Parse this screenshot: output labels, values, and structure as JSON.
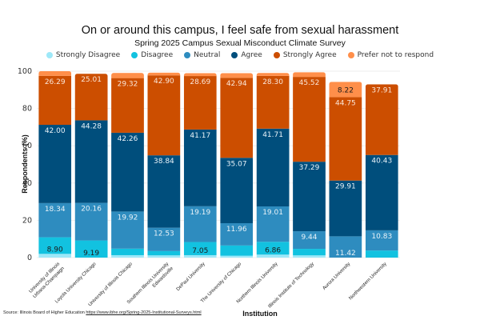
{
  "chart_data": {
    "type": "bar",
    "stacked": true,
    "title": "On or around this campus, I feel safe from sexual harassment",
    "subtitle": "Spring 2025 Campus Sexual Misconduct Climate Survey",
    "xlabel": "Institution",
    "ylabel": "Respondents (%)",
    "ylim": [
      0,
      100
    ],
    "yticks": [
      0,
      20,
      40,
      60,
      80,
      100
    ],
    "grid": true,
    "legend_position": "top",
    "categories": [
      "University of Illinois Urbana-Champaign",
      "Loyola University Chicago",
      "University of Illinois Chicago",
      "Southern Illinois University Edwardsville",
      "DePaul University",
      "The University of Chicago",
      "Northern Illinois University",
      "Illinois Institute of Technology",
      "Aurora University",
      "Northwestern University"
    ],
    "category_lines": [
      [
        "University of Illinois",
        "Urbana-Champaign"
      ],
      [
        "Loyola University Chicago"
      ],
      [
        "University of Illinois Chicago"
      ],
      [
        "Southern Illinois University",
        "Edwardsville"
      ],
      [
        "DePaul University"
      ],
      [
        "The University of Chicago"
      ],
      [
        "Northern Illinois University"
      ],
      [
        "Illinois Institute of Technology"
      ],
      [
        "Aurora University"
      ],
      [
        "Northwestern University"
      ]
    ],
    "series": [
      {
        "name": "Strongly Disagree",
        "color": "#9ee8f8",
        "label_color": "#1a1a1a",
        "values": [
          2.0,
          0,
          1.3,
          1.2,
          1.3,
          1.0,
          1.6,
          1.2,
          0,
          0
        ],
        "labels": [
          null,
          null,
          null,
          null,
          null,
          null,
          null,
          null,
          null,
          null
        ]
      },
      {
        "name": "Disagree",
        "color": "#12c2e0",
        "label_color": "#1a1a1a",
        "values": [
          8.9,
          9.19,
          3.5,
          2.3,
          7.05,
          5.5,
          6.86,
          3.5,
          0,
          3.8
        ],
        "labels": [
          "8.90",
          "9.19",
          null,
          null,
          "7.05",
          null,
          "6.86",
          null,
          null,
          null
        ]
      },
      {
        "name": "Neutral",
        "color": "#2e8cbf",
        "label_color": "#e8f2f8",
        "values": [
          18.34,
          20.16,
          19.92,
          12.53,
          19.19,
          11.96,
          19.01,
          9.44,
          11.42,
          10.83
        ],
        "labels": [
          "18.34",
          "20.16",
          "19.92",
          "12.53",
          "19.19",
          "11.96",
          "19.01",
          "9.44",
          "11.42",
          "10.83"
        ]
      },
      {
        "name": "Agree",
        "color": "#004e7c",
        "label_color": "#e8f2f8",
        "values": [
          42.0,
          44.28,
          42.26,
          38.84,
          41.17,
          35.07,
          41.71,
          37.29,
          29.91,
          40.43
        ],
        "labels": [
          "42.00",
          "44.28",
          "42.26",
          "38.84",
          "41.17",
          "35.07",
          "41.71",
          "37.29",
          "29.91",
          "40.43"
        ]
      },
      {
        "name": "Strongly Agree",
        "color": "#cc4e00",
        "label_color": "#fbe6d8",
        "values": [
          26.29,
          25.01,
          29.32,
          42.9,
          28.69,
          42.94,
          28.3,
          45.52,
          44.75,
          37.91
        ],
        "labels": [
          "26.29",
          "25.01",
          "29.32",
          "42.90",
          "28.69",
          "42.94",
          "28.30",
          "45.52",
          "44.75",
          "37.91"
        ]
      },
      {
        "name": "Prefer not to respond",
        "color": "#ff8f4a",
        "label_color": "#1a1a1a",
        "values": [
          2.5,
          0,
          2.8,
          1.5,
          1.6,
          2.5,
          1.6,
          2.5,
          8.22,
          0
        ],
        "labels": [
          null,
          null,
          null,
          null,
          null,
          null,
          null,
          null,
          "8.22",
          null
        ]
      }
    ]
  },
  "source": {
    "prefix": "Source: Illinois Board of Higher Education ",
    "link_text": "https://www.ibhe.org/Spring-2025-Institutional-Surveys.html"
  }
}
